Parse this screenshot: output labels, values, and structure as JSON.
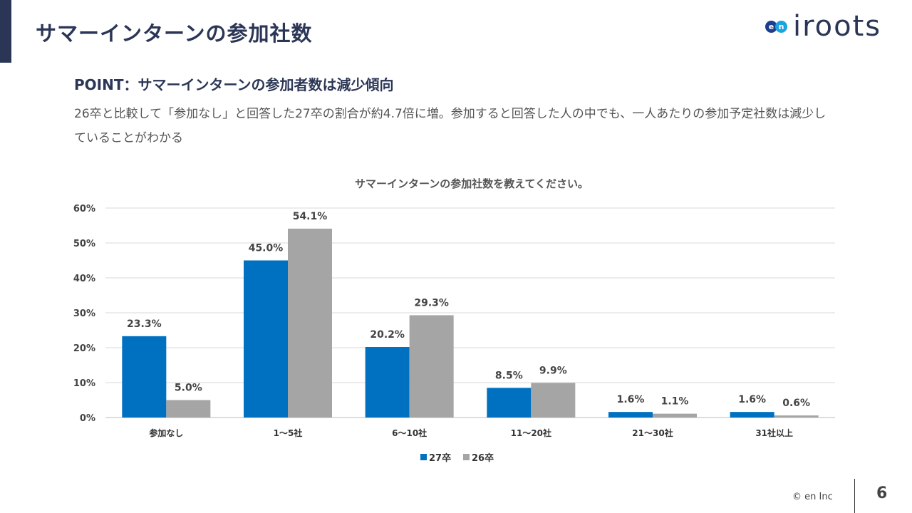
{
  "header": {
    "title": "サマーインターンの参加社数",
    "logo_text": "iroots",
    "logo_badge": "en"
  },
  "point": "POINT：サマーインターンの参加者数は減少傾向",
  "description": "26卒と比較して「参加なし」と回答した27卒の割合が約4.7倍に増。参加すると回答した人の中でも、一人あたりの参加予定社数は減少していることがわかる",
  "footer": {
    "copyright": "© en Inc",
    "page": "6"
  },
  "chart_data": {
    "type": "bar",
    "title": "サマーインターンの参加社数を教えてください。",
    "categories": [
      "参加なし",
      "1～5社",
      "6～10社",
      "11～20社",
      "21～30社",
      "31社以上"
    ],
    "series": [
      {
        "name": "27卒",
        "values": [
          23.3,
          45.0,
          20.2,
          8.5,
          1.6,
          1.6
        ],
        "color": "#0070c0"
      },
      {
        "name": "26卒",
        "values": [
          5.0,
          54.1,
          29.3,
          9.9,
          1.1,
          0.6
        ],
        "color": "#a5a5a5"
      }
    ],
    "yticks": [
      "0%",
      "10%",
      "20%",
      "30%",
      "40%",
      "50%",
      "60%"
    ],
    "ylim": [
      0,
      60
    ],
    "grid": true,
    "legend": "bottom"
  }
}
